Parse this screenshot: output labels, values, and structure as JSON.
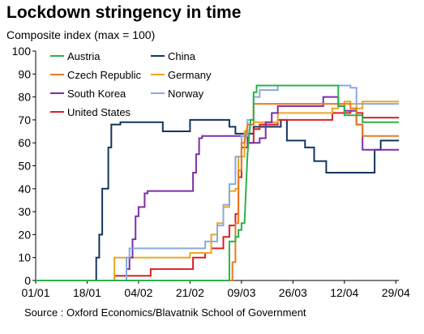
{
  "title": "Lockdown stringency in time",
  "ylabel": "Composite index (max = 100)",
  "source": "Source : Oxford Economics/Blavatnik School of Government",
  "chart_data": {
    "type": "line",
    "ylim": [
      0,
      100
    ],
    "yticks": [
      0,
      10,
      20,
      30,
      40,
      50,
      60,
      70,
      80,
      90,
      100
    ],
    "xlim": [
      0,
      120
    ],
    "xticks": [
      {
        "day": 0,
        "label": "01/01"
      },
      {
        "day": 17,
        "label": "18/01"
      },
      {
        "day": 34,
        "label": "04/02"
      },
      {
        "day": 51,
        "label": "21/02"
      },
      {
        "day": 68,
        "label": "09/03"
      },
      {
        "day": 85,
        "label": "26/03"
      },
      {
        "day": 102,
        "label": "12/04"
      },
      {
        "day": 119,
        "label": "29/04"
      }
    ],
    "legend_placement": "top-left",
    "grid": false,
    "series": [
      {
        "name": "Austria",
        "color": "#2bb24c",
        "points": [
          [
            0,
            0
          ],
          [
            63,
            0
          ],
          [
            64,
            0
          ],
          [
            64,
            17
          ],
          [
            66,
            17
          ],
          [
            66,
            19
          ],
          [
            67,
            19
          ],
          [
            67,
            22
          ],
          [
            68,
            22
          ],
          [
            68,
            25
          ],
          [
            69,
            25
          ],
          [
            70,
            55
          ],
          [
            71,
            70
          ],
          [
            72,
            70
          ],
          [
            72,
            82
          ],
          [
            73,
            82
          ],
          [
            73,
            85
          ],
          [
            100,
            85
          ],
          [
            100,
            76
          ],
          [
            102,
            76
          ],
          [
            102,
            72
          ],
          [
            108,
            72
          ],
          [
            108,
            69
          ],
          [
            120,
            69
          ]
        ]
      },
      {
        "name": "China",
        "color": "#13355f",
        "points": [
          [
            0,
            0
          ],
          [
            20,
            0
          ],
          [
            20,
            10
          ],
          [
            21,
            10
          ],
          [
            21,
            20
          ],
          [
            22,
            20
          ],
          [
            22,
            40
          ],
          [
            23,
            40
          ],
          [
            24,
            40
          ],
          [
            24,
            58
          ],
          [
            25,
            58
          ],
          [
            25,
            68
          ],
          [
            28,
            68
          ],
          [
            28,
            69
          ],
          [
            42,
            69
          ],
          [
            42,
            65
          ],
          [
            51,
            65
          ],
          [
            51,
            70
          ],
          [
            64,
            70
          ],
          [
            64,
            67
          ],
          [
            66,
            67
          ],
          [
            66,
            64
          ],
          [
            72,
            64
          ],
          [
            72,
            67
          ],
          [
            81,
            67
          ],
          [
            81,
            70
          ],
          [
            83,
            70
          ],
          [
            83,
            61
          ],
          [
            89,
            61
          ],
          [
            89,
            58
          ],
          [
            92,
            58
          ],
          [
            92,
            52
          ],
          [
            96,
            52
          ],
          [
            96,
            47
          ],
          [
            112,
            47
          ],
          [
            112,
            57
          ],
          [
            114,
            57
          ],
          [
            114,
            61
          ],
          [
            120,
            61
          ]
        ]
      },
      {
        "name": "Czech Republic",
        "color": "#e87a23",
        "points": [
          [
            0,
            0
          ],
          [
            64,
            0
          ],
          [
            65,
            0
          ],
          [
            65,
            8
          ],
          [
            66,
            8
          ],
          [
            66,
            25
          ],
          [
            67,
            25
          ],
          [
            67,
            48
          ],
          [
            68,
            48
          ],
          [
            68,
            60
          ],
          [
            69,
            60
          ],
          [
            70,
            68
          ],
          [
            72,
            68
          ],
          [
            72,
            77
          ],
          [
            104,
            77
          ],
          [
            104,
            75
          ],
          [
            106,
            75
          ],
          [
            106,
            68
          ],
          [
            108,
            68
          ],
          [
            108,
            63
          ],
          [
            120,
            63
          ]
        ]
      },
      {
        "name": "Germany",
        "color": "#e8a822",
        "points": [
          [
            0,
            0
          ],
          [
            26,
            0
          ],
          [
            26,
            10
          ],
          [
            51,
            10
          ],
          [
            51,
            12
          ],
          [
            58,
            12
          ],
          [
            58,
            20
          ],
          [
            60,
            20
          ],
          [
            60,
            25
          ],
          [
            62,
            25
          ],
          [
            62,
            32
          ],
          [
            64,
            32
          ],
          [
            64,
            39
          ],
          [
            66,
            39
          ],
          [
            66,
            40
          ],
          [
            67,
            40
          ],
          [
            67,
            54
          ],
          [
            69,
            54
          ],
          [
            69,
            65
          ],
          [
            70,
            65
          ],
          [
            70,
            68
          ],
          [
            72,
            68
          ],
          [
            72,
            69
          ],
          [
            80,
            69
          ],
          [
            80,
            73
          ],
          [
            92,
            73
          ],
          [
            92,
            73
          ],
          [
            98,
            73
          ],
          [
            98,
            75
          ],
          [
            100,
            75
          ],
          [
            100,
            76
          ],
          [
            102,
            76
          ],
          [
            102,
            78
          ],
          [
            104,
            78
          ],
          [
            104,
            77
          ],
          [
            106,
            77
          ],
          [
            106,
            75
          ],
          [
            108,
            75
          ],
          [
            108,
            78
          ],
          [
            120,
            78
          ]
        ]
      },
      {
        "name": "South Korea",
        "color": "#7b2fa8",
        "points": [
          [
            0,
            0
          ],
          [
            30,
            0
          ],
          [
            30,
            5
          ],
          [
            31,
            5
          ],
          [
            31,
            10
          ],
          [
            32,
            10
          ],
          [
            32,
            18
          ],
          [
            33,
            18
          ],
          [
            33,
            28
          ],
          [
            34,
            28
          ],
          [
            34,
            32
          ],
          [
            36,
            32
          ],
          [
            36,
            38
          ],
          [
            37,
            38
          ],
          [
            37,
            39
          ],
          [
            52,
            39
          ],
          [
            52,
            47
          ],
          [
            53,
            47
          ],
          [
            53,
            55
          ],
          [
            54,
            55
          ],
          [
            54,
            62
          ],
          [
            55,
            62
          ],
          [
            55,
            63
          ],
          [
            70,
            63
          ],
          [
            70,
            60
          ],
          [
            74,
            60
          ],
          [
            74,
            62
          ],
          [
            76,
            62
          ],
          [
            76,
            69
          ],
          [
            78,
            69
          ],
          [
            78,
            73
          ],
          [
            80,
            73
          ],
          [
            80,
            76
          ],
          [
            90,
            76
          ],
          [
            90,
            76
          ],
          [
            95,
            76
          ],
          [
            95,
            80
          ],
          [
            100,
            80
          ],
          [
            100,
            76
          ],
          [
            102,
            76
          ],
          [
            102,
            74
          ],
          [
            106,
            74
          ],
          [
            106,
            68
          ],
          [
            108,
            68
          ],
          [
            108,
            57
          ],
          [
            120,
            57
          ]
        ]
      },
      {
        "name": "Norway",
        "color": "#8aa9e0",
        "points": [
          [
            0,
            0
          ],
          [
            30,
            0
          ],
          [
            30,
            10
          ],
          [
            31,
            10
          ],
          [
            31,
            14
          ],
          [
            56,
            14
          ],
          [
            56,
            17
          ],
          [
            60,
            17
          ],
          [
            60,
            24
          ],
          [
            62,
            24
          ],
          [
            62,
            33
          ],
          [
            64,
            33
          ],
          [
            64,
            42
          ],
          [
            66,
            42
          ],
          [
            66,
            54
          ],
          [
            68,
            54
          ],
          [
            68,
            63
          ],
          [
            70,
            63
          ],
          [
            70,
            70
          ],
          [
            72,
            70
          ],
          [
            72,
            80
          ],
          [
            74,
            80
          ],
          [
            74,
            83
          ],
          [
            80,
            83
          ],
          [
            80,
            85
          ],
          [
            104,
            85
          ],
          [
            104,
            84
          ],
          [
            106,
            84
          ],
          [
            106,
            77
          ],
          [
            120,
            77
          ]
        ]
      },
      {
        "name": "United States",
        "color": "#dd1f26",
        "points": [
          [
            0,
            0
          ],
          [
            26,
            0
          ],
          [
            26,
            2
          ],
          [
            38,
            2
          ],
          [
            38,
            5
          ],
          [
            52,
            5
          ],
          [
            52,
            10
          ],
          [
            56,
            10
          ],
          [
            56,
            12
          ],
          [
            58,
            12
          ],
          [
            58,
            14
          ],
          [
            62,
            14
          ],
          [
            62,
            19
          ],
          [
            64,
            19
          ],
          [
            64,
            24
          ],
          [
            66,
            24
          ],
          [
            66,
            29
          ],
          [
            67,
            29
          ],
          [
            67,
            45
          ],
          [
            68,
            45
          ],
          [
            68,
            58
          ],
          [
            70,
            58
          ],
          [
            70,
            60
          ],
          [
            72,
            60
          ],
          [
            72,
            66
          ],
          [
            74,
            66
          ],
          [
            74,
            68
          ],
          [
            80,
            68
          ],
          [
            80,
            70
          ],
          [
            98,
            70
          ],
          [
            98,
            73
          ],
          [
            100,
            73
          ],
          [
            100,
            73
          ],
          [
            104,
            73
          ],
          [
            104,
            74
          ],
          [
            106,
            74
          ],
          [
            106,
            73
          ],
          [
            108,
            73
          ],
          [
            108,
            71
          ],
          [
            120,
            71
          ]
        ]
      }
    ]
  }
}
